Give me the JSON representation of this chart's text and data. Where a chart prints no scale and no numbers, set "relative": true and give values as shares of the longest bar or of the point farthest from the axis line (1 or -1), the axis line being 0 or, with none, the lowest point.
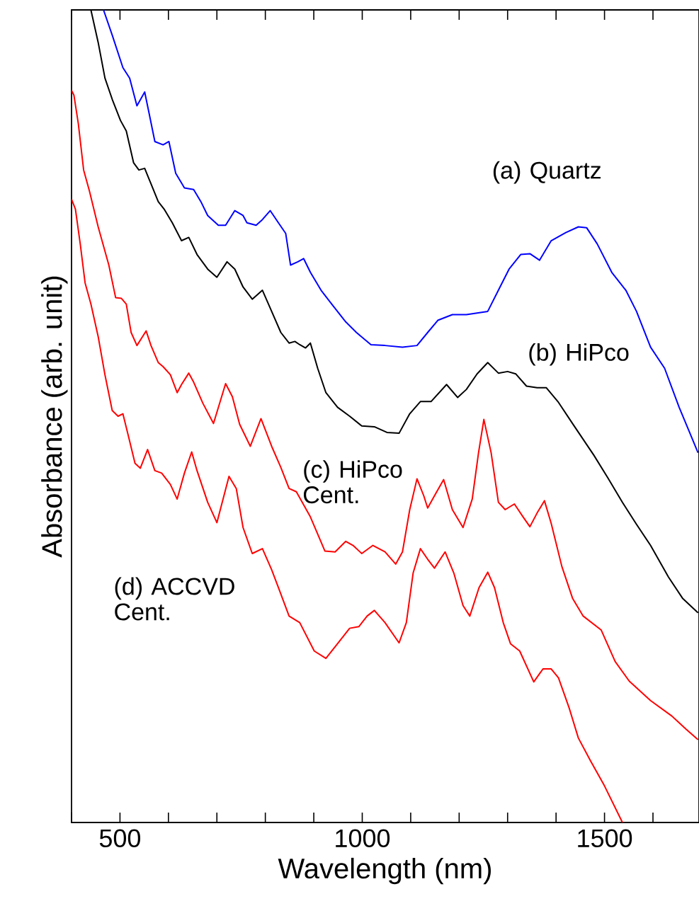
{
  "chart_data": {
    "type": "line",
    "relative": true,
    "xlabel": "Wavelength (nm)",
    "ylabel": "Absorbance (arb. unit)",
    "xlim": [
      400,
      1695
    ],
    "xticks": [
      {
        "value": 400,
        "label": null
      },
      500,
      {
        "value": 600,
        "label": null
      },
      {
        "value": 700,
        "label": null
      },
      {
        "value": 800,
        "label": null
      },
      {
        "value": 900,
        "label": null
      },
      1000,
      {
        "value": 1100,
        "label": null
      },
      {
        "value": 1200,
        "label": null
      },
      {
        "value": 1300,
        "label": null
      },
      {
        "value": 1400,
        "label": null
      },
      1500,
      {
        "value": 1600,
        "label": null
      }
    ],
    "grid": false,
    "marker": "none",
    "line_style": "solid",
    "series": [
      {
        "name": "(a) Quartz",
        "color": "#0000ff",
        "x": [
          466,
          484,
          506,
          520,
          535,
          551,
          560,
          572,
          589,
          601,
          615,
          633,
          652,
          667,
          681,
          703,
          718,
          737,
          754,
          762,
          781,
          794,
          810,
          827,
          842,
          852,
          867,
          879,
          893,
          915,
          937,
          966,
          988,
          1018,
          1047,
          1083,
          1113,
          1135,
          1156,
          1186,
          1215,
          1259,
          1281,
          1303,
          1327,
          1346,
          1366,
          1390,
          1420,
          1446,
          1463,
          1485,
          1515,
          1544,
          1566,
          1595,
          1624,
          1654,
          1675,
          1693
        ],
        "values": [
          1.0,
          0.969,
          0.929,
          0.916,
          0.882,
          0.899,
          0.873,
          0.838,
          0.834,
          0.838,
          0.799,
          0.781,
          0.779,
          0.764,
          0.747,
          0.735,
          0.735,
          0.753,
          0.747,
          0.738,
          0.735,
          0.742,
          0.753,
          0.738,
          0.725,
          0.686,
          0.69,
          0.694,
          0.677,
          0.655,
          0.638,
          0.616,
          0.603,
          0.588,
          0.587,
          0.585,
          0.587,
          0.603,
          0.618,
          0.625,
          0.625,
          0.629,
          0.655,
          0.681,
          0.699,
          0.7,
          0.692,
          0.716,
          0.726,
          0.733,
          0.732,
          0.712,
          0.677,
          0.655,
          0.629,
          0.585,
          0.559,
          0.511,
          0.481,
          0.455
        ]
      },
      {
        "name": "(b) HiPco",
        "color": "#000000",
        "x": [
          440,
          455,
          469,
          484,
          501,
          513,
          528,
          539,
          551,
          564,
          579,
          591,
          608,
          627,
          642,
          659,
          681,
          700,
          721,
          737,
          754,
          773,
          794,
          813,
          832,
          849,
          861,
          871,
          883,
          893,
          908,
          925,
          949,
          974,
          999,
          1025,
          1051,
          1076,
          1098,
          1120,
          1142,
          1174,
          1197,
          1215,
          1237,
          1259,
          1281,
          1300,
          1317,
          1339,
          1361,
          1380,
          1405,
          1434,
          1478,
          1507,
          1537,
          1566,
          1595,
          1632,
          1661,
          1693
        ],
        "values": [
          1.0,
          0.96,
          0.916,
          0.89,
          0.864,
          0.851,
          0.812,
          0.803,
          0.805,
          0.786,
          0.764,
          0.755,
          0.738,
          0.716,
          0.72,
          0.699,
          0.681,
          0.671,
          0.69,
          0.681,
          0.659,
          0.644,
          0.655,
          0.629,
          0.603,
          0.59,
          0.592,
          0.588,
          0.584,
          0.59,
          0.559,
          0.529,
          0.511,
          0.5,
          0.488,
          0.487,
          0.48,
          0.479,
          0.503,
          0.518,
          0.518,
          0.539,
          0.523,
          0.533,
          0.552,
          0.566,
          0.553,
          0.555,
          0.552,
          0.537,
          0.535,
          0.535,
          0.517,
          0.491,
          0.452,
          0.424,
          0.394,
          0.367,
          0.341,
          0.302,
          0.276,
          0.258
        ]
      },
      {
        "name": "(c) HiPco Cent.",
        "color": "#ff0000",
        "x": [
          400,
          405,
          414,
          425,
          437,
          455,
          477,
          491,
          503,
          513,
          523,
          535,
          554,
          564,
          579,
          589,
          604,
          618,
          627,
          642,
          652,
          671,
          693,
          718,
          732,
          747,
          769,
          791,
          813,
          832,
          849,
          864,
          893,
          923,
          944,
          966,
          981,
          999,
          1022,
          1047,
          1069,
          1083,
          1098,
          1113,
          1127,
          1135,
          1149,
          1168,
          1186,
          1208,
          1227,
          1240,
          1251,
          1266,
          1281,
          1295,
          1314,
          1332,
          1346,
          1361,
          1376,
          1390,
          1412,
          1434,
          1456,
          1493,
          1522,
          1551,
          1595,
          1639,
          1668,
          1693
        ],
        "values": [
          0.901,
          0.895,
          0.86,
          0.803,
          0.777,
          0.733,
          0.686,
          0.646,
          0.645,
          0.638,
          0.603,
          0.587,
          0.605,
          0.587,
          0.566,
          0.561,
          0.551,
          0.529,
          0.539,
          0.553,
          0.542,
          0.516,
          0.491,
          0.54,
          0.524,
          0.49,
          0.463,
          0.497,
          0.463,
          0.437,
          0.411,
          0.407,
          0.376,
          0.334,
          0.333,
          0.346,
          0.341,
          0.331,
          0.341,
          0.333,
          0.318,
          0.333,
          0.385,
          0.423,
          0.402,
          0.387,
          0.402,
          0.422,
          0.385,
          0.363,
          0.398,
          0.455,
          0.496,
          0.455,
          0.394,
          0.385,
          0.392,
          0.376,
          0.364,
          0.381,
          0.396,
          0.368,
          0.315,
          0.276,
          0.254,
          0.237,
          0.198,
          0.174,
          0.15,
          0.131,
          0.115,
          0.102
        ]
      },
      {
        "name": "(d) ACCVD Cent.",
        "color": "#ff0000",
        "x": [
          400,
          408,
          418,
          428,
          440,
          455,
          469,
          484,
          496,
          506,
          518,
          531,
          542,
          557,
          572,
          586,
          604,
          618,
          633,
          648,
          659,
          681,
          700,
          725,
          740,
          754,
          773,
          794,
          813,
          827,
          849,
          871,
          901,
          925,
          949,
          974,
          993,
          1010,
          1025,
          1047,
          1076,
          1091,
          1105,
          1120,
          1135,
          1149,
          1171,
          1189,
          1208,
          1222,
          1241,
          1259,
          1273,
          1291,
          1306,
          1325,
          1354,
          1373,
          1390,
          1405,
          1427,
          1446,
          1471,
          1500,
          1537
        ],
        "values": [
          0.767,
          0.755,
          0.712,
          0.664,
          0.638,
          0.598,
          0.551,
          0.507,
          0.5,
          0.503,
          0.474,
          0.442,
          0.436,
          0.459,
          0.433,
          0.43,
          0.416,
          0.398,
          0.43,
          0.456,
          0.433,
          0.394,
          0.369,
          0.426,
          0.411,
          0.363,
          0.331,
          0.337,
          0.311,
          0.289,
          0.254,
          0.246,
          0.211,
          0.202,
          0.22,
          0.239,
          0.241,
          0.254,
          0.261,
          0.246,
          0.221,
          0.246,
          0.307,
          0.337,
          0.324,
          0.313,
          0.333,
          0.307,
          0.267,
          0.254,
          0.289,
          0.308,
          0.289,
          0.246,
          0.22,
          0.211,
          0.173,
          0.189,
          0.189,
          0.178,
          0.141,
          0.104,
          0.076,
          0.045,
          0.0
        ]
      }
    ]
  }
}
